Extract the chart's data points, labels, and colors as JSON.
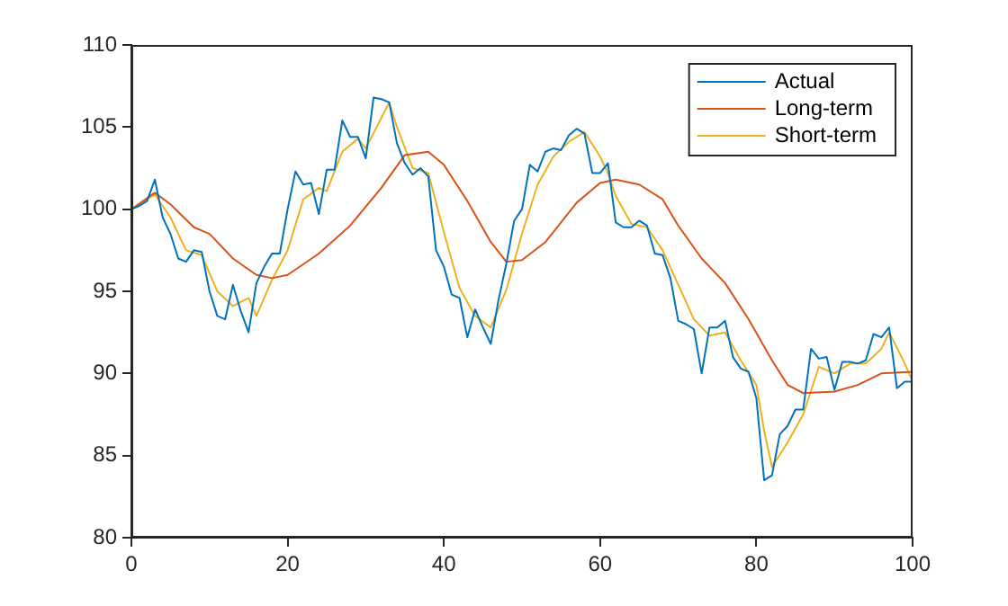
{
  "chart_data": {
    "type": "line",
    "xlim": [
      0,
      100
    ],
    "xticks": [
      0,
      20,
      40,
      60,
      80,
      100
    ],
    "ylim": [
      80,
      110
    ],
    "yticks": [
      80,
      85,
      90,
      95,
      100,
      105,
      110
    ],
    "grid": false,
    "legend": "top right",
    "marker": "none",
    "line_style": "solid",
    "series": [
      {
        "name": "Actual",
        "color": "#0072bd",
        "x": [
          0,
          1,
          2,
          3,
          4,
          5,
          6,
          7,
          8,
          9,
          10,
          11,
          12,
          13,
          14,
          15,
          16,
          17,
          18,
          19,
          20,
          21,
          22,
          23,
          24,
          25,
          26,
          27,
          28,
          29,
          30,
          31,
          32,
          33,
          34,
          35,
          36,
          37,
          38,
          39,
          40,
          41,
          42,
          43,
          44,
          45,
          46,
          47,
          48,
          49,
          50,
          51,
          52,
          53,
          54,
          55,
          56,
          57,
          58,
          59,
          60,
          61,
          62,
          63,
          64,
          65,
          66,
          67,
          68,
          69,
          70,
          71,
          72,
          73,
          74,
          75,
          76,
          77,
          78,
          79,
          80,
          81,
          82,
          83,
          84,
          85,
          86,
          87,
          88,
          89,
          90,
          91,
          92,
          93,
          94,
          95,
          96,
          97,
          98,
          99,
          100
        ],
        "values": [
          100,
          100.2,
          100.5,
          101.8,
          99.5,
          98.5,
          97,
          96.8,
          97.5,
          97.4,
          95,
          93.5,
          93.3,
          95.4,
          93.8,
          92.5,
          95.5,
          96.5,
          97.3,
          97.3,
          100,
          102.3,
          101.5,
          101.6,
          99.7,
          102.4,
          102.4,
          105.4,
          104.4,
          104.4,
          103.1,
          106.8,
          106.7,
          106.5,
          104,
          102.8,
          102.1,
          102.5,
          102,
          97.5,
          96.5,
          94.8,
          94.6,
          92.2,
          93.9,
          92.8,
          91.8,
          94.5,
          96.7,
          99.3,
          100,
          102.7,
          102.3,
          103.5,
          103.7,
          103.6,
          104.5,
          104.9,
          104.6,
          102.2,
          102.2,
          102.8,
          99.2,
          98.9,
          98.9,
          99.3,
          99,
          97.3,
          97.2,
          95.8,
          93.2,
          93,
          92.7,
          90,
          92.8,
          92.8,
          93.2,
          91,
          90.3,
          90.1,
          88.5,
          83.5,
          83.8,
          86.3,
          86.8,
          87.8,
          87.8,
          91.5,
          90.9,
          91,
          89,
          90.7,
          90.7,
          90.6,
          90.8,
          92.4,
          92.2,
          92.8,
          89.1,
          89.5,
          89.5
        ]
      },
      {
        "name": "Long-term",
        "color": "#d95319",
        "x": [
          0,
          3,
          5,
          8,
          10,
          13,
          16,
          18,
          20,
          24,
          28,
          32,
          35,
          38,
          40,
          43,
          46,
          48,
          50,
          53,
          57,
          60,
          62,
          65,
          68,
          70,
          73,
          76,
          79,
          82,
          84,
          86,
          90,
          93,
          96,
          100
        ],
        "values": [
          100,
          101,
          100.3,
          98.9,
          98.5,
          97,
          96,
          95.8,
          96,
          97.3,
          99,
          101.3,
          103.3,
          103.5,
          102.7,
          100.5,
          98,
          96.8,
          96.9,
          98,
          100.4,
          101.6,
          101.8,
          101.5,
          100.6,
          99,
          97,
          95.5,
          93.3,
          90.8,
          89.3,
          88.8,
          88.9,
          89.3,
          90,
          90.1
        ]
      },
      {
        "name": "Short-term",
        "color": "#edb120",
        "x": [
          0,
          3,
          5,
          7,
          9,
          11,
          13,
          15,
          16,
          18,
          20,
          22,
          24,
          25,
          27,
          29,
          30,
          33,
          34,
          36,
          38,
          40,
          42,
          44,
          46,
          48,
          50,
          52,
          54,
          56,
          58,
          60,
          61,
          62,
          64,
          66,
          68,
          70,
          72,
          74,
          76,
          78,
          80,
          81,
          82,
          84,
          86,
          88,
          90,
          92,
          94,
          96,
          97,
          99,
          100
        ],
        "values": [
          100,
          100.9,
          99.5,
          97.5,
          97.2,
          95,
          94.1,
          94.6,
          93.5,
          95.7,
          97.5,
          100.6,
          101.3,
          101.1,
          103.5,
          104.3,
          103.7,
          106.5,
          105,
          102.5,
          102.2,
          98.6,
          95.2,
          93.5,
          92.8,
          95.1,
          98.5,
          101.5,
          103.2,
          104.1,
          104.7,
          103.2,
          102.2,
          100.8,
          99.1,
          98.9,
          97.5,
          95.4,
          93.3,
          92.3,
          92.5,
          90.8,
          89.3,
          86.5,
          84.3,
          85.8,
          87.5,
          90.4,
          90,
          90.6,
          90.6,
          91.5,
          92.5,
          90.6,
          89.5
        ]
      }
    ]
  }
}
